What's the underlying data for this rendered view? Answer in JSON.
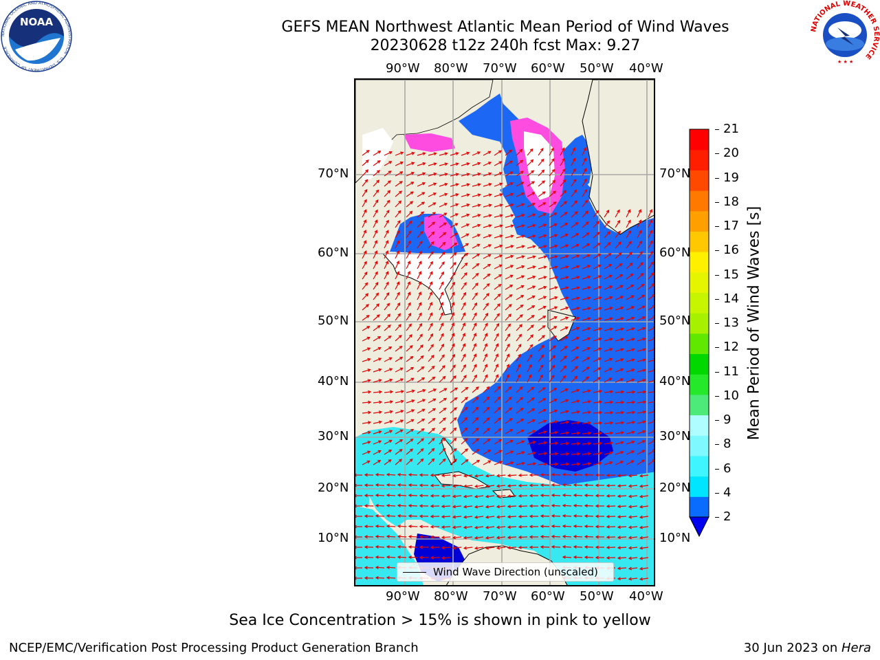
{
  "title": {
    "line1": "GEFS MEAN Northwest Atlantic Mean Period of Wind Waves",
    "line2": "20230628 t12z 240h fcst   Max: 9.27"
  },
  "axes": {
    "lon_labels": [
      "90°W",
      "80°W",
      "70°W",
      "60°W",
      "50°W",
      "40°W"
    ],
    "lat_labels": [
      "70°N",
      "60°N",
      "50°N",
      "40°N",
      "30°N",
      "20°N",
      "10°N"
    ]
  },
  "legend": {
    "label": "Wind Wave Direction (unscaled)"
  },
  "colorbar": {
    "title": "Mean Period of Wind Waves [s]",
    "ticks": [
      "2",
      "4",
      "6",
      "8",
      "9",
      "10",
      "11",
      "12",
      "13",
      "14",
      "15",
      "16",
      "17",
      "18",
      "19",
      "20",
      "21"
    ],
    "colors": [
      "#0a6cff",
      "#00e5ff",
      "#3ff5ff",
      "#7ff9ff",
      "#b0fdff",
      "#4dea7a",
      "#25e82a",
      "#00d800",
      "#61e800",
      "#a6f000",
      "#c7f500",
      "#e5f500",
      "#fff000",
      "#ffc800",
      "#ffa000",
      "#ff7800",
      "#ff4800",
      "#ff1e00",
      "#ff0000"
    ],
    "under_color": "#0000ee"
  },
  "colors": {
    "land": "#efedde",
    "ocean_dark": "#1c68f4",
    "ocean_light": "#38e8f0",
    "deep_blue": "#0000d6",
    "ice_pink": "#ff4ce0",
    "ice_white": "#ffffff",
    "arrow": "#e30000",
    "grid": "#a8a8a8"
  },
  "ice_note": "Sea Ice Concentration > 15% is shown in pink to yellow",
  "footer": {
    "left": "NCEP/EMC/Verification Post Processing Product Generation Branch",
    "right_date": "30 Jun 2023 on ",
    "right_machine": "Hera"
  },
  "logos": {
    "noaa_text": "NOAA",
    "noaa_ring": "NATIONAL OCEANIC AND ATMOSPHERIC ADMINISTRATION · U.S. DEPARTMENT OF COMMERCE",
    "nws_ring": "NATIONAL WEATHER SERVICE"
  }
}
